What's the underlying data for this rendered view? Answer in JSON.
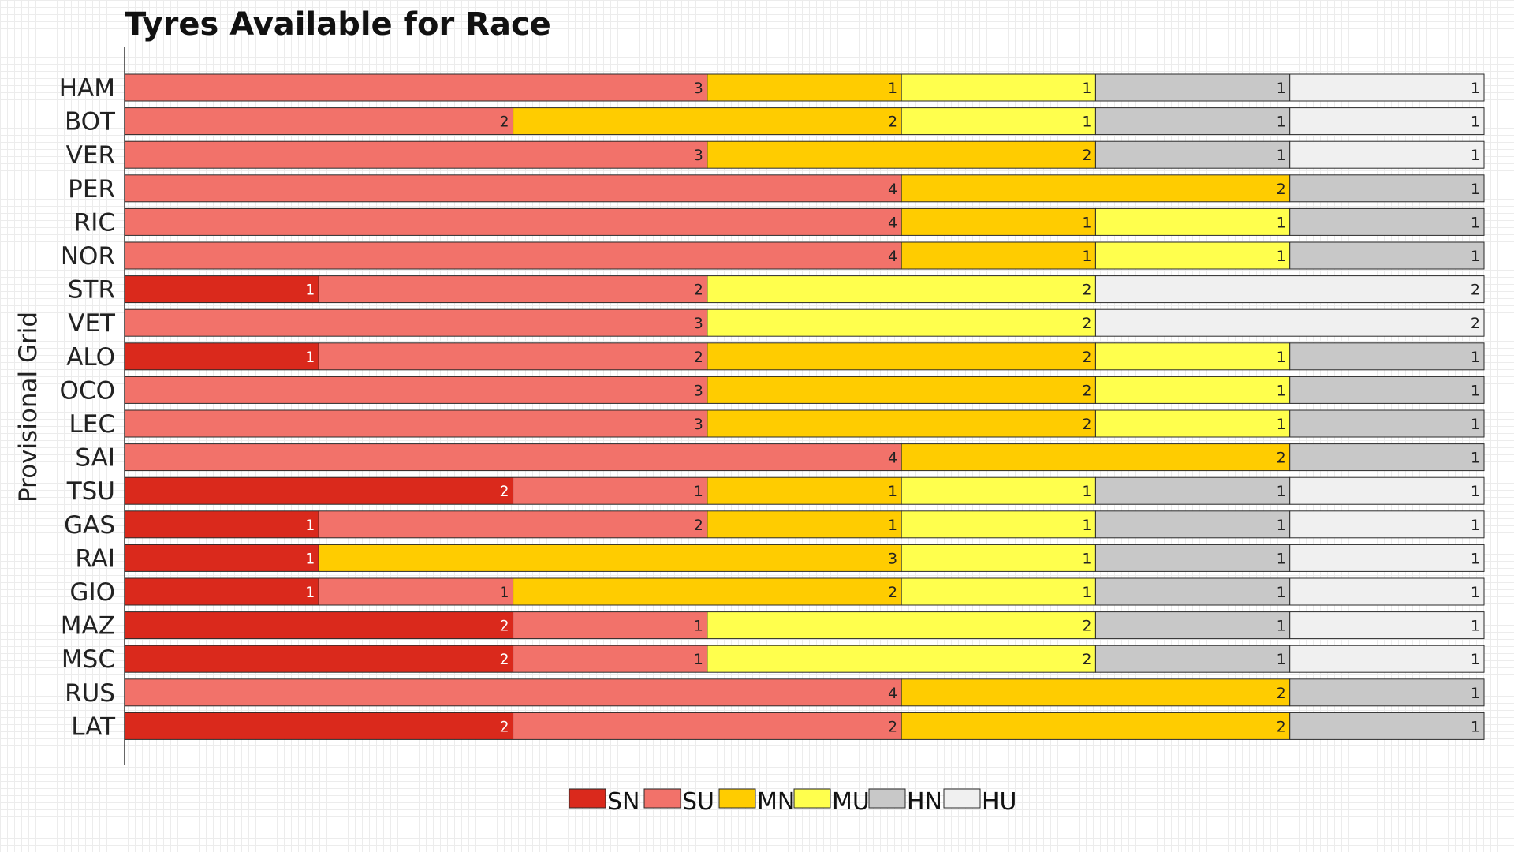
{
  "chart_data": {
    "type": "bar",
    "orientation": "horizontal",
    "stacked": true,
    "title": "Tyres Available for Race",
    "ylabel": "Provisional Grid",
    "xlabel": "",
    "xlim": [
      0,
      7
    ],
    "grid": false,
    "legend_position": "bottom",
    "categories": [
      "HAM",
      "BOT",
      "VER",
      "PER",
      "RIC",
      "NOR",
      "STR",
      "VET",
      "ALO",
      "OCO",
      "LEC",
      "SAI",
      "TSU",
      "GAS",
      "RAI",
      "GIO",
      "MAZ",
      "MSC",
      "RUS",
      "LAT"
    ],
    "series": [
      {
        "name": "SN",
        "color": "#da291c",
        "label_color": "#ffffff",
        "values": [
          0,
          0,
          0,
          0,
          0,
          0,
          1,
          0,
          1,
          0,
          0,
          0,
          2,
          1,
          1,
          1,
          2,
          2,
          0,
          2
        ]
      },
      {
        "name": "SU",
        "color": "#f2726a",
        "label_color": "#222222",
        "values": [
          3,
          2,
          3,
          4,
          4,
          4,
          2,
          3,
          2,
          3,
          3,
          4,
          1,
          2,
          0,
          1,
          1,
          1,
          4,
          2
        ]
      },
      {
        "name": "MN",
        "color": "#ffcc00",
        "label_color": "#222222",
        "values": [
          1,
          2,
          2,
          2,
          1,
          1,
          0,
          0,
          2,
          2,
          2,
          2,
          1,
          1,
          3,
          2,
          0,
          0,
          2,
          2
        ]
      },
      {
        "name": "MU",
        "color": "#ffff4d",
        "label_color": "#222222",
        "values": [
          1,
          1,
          0,
          0,
          1,
          1,
          2,
          2,
          1,
          1,
          1,
          0,
          1,
          1,
          1,
          1,
          2,
          2,
          0,
          0
        ]
      },
      {
        "name": "HN",
        "color": "#c8c8c8",
        "label_color": "#222222",
        "values": [
          1,
          1,
          1,
          1,
          1,
          1,
          0,
          0,
          1,
          1,
          1,
          1,
          1,
          1,
          1,
          1,
          1,
          1,
          1,
          1
        ]
      },
      {
        "name": "HU",
        "color": "#f0f0f0",
        "label_color": "#222222",
        "values": [
          1,
          1,
          1,
          0,
          0,
          0,
          2,
          2,
          0,
          0,
          0,
          0,
          1,
          1,
          1,
          1,
          1,
          1,
          0,
          0
        ]
      }
    ]
  }
}
